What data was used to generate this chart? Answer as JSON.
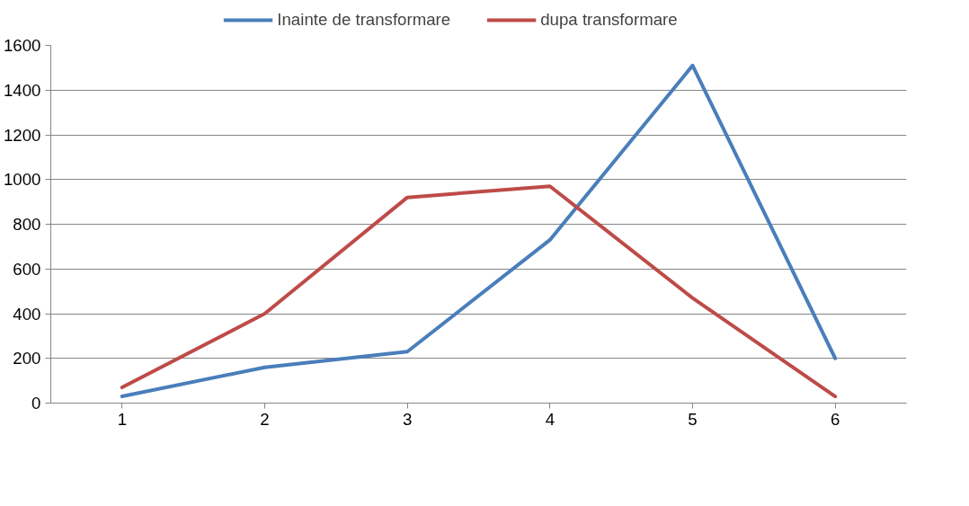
{
  "chart_data": {
    "type": "line",
    "categories": [
      "1",
      "2",
      "3",
      "4",
      "5",
      "6"
    ],
    "series": [
      {
        "name": "Inainte de transformare",
        "color": "#4a7ebb",
        "values": [
          30,
          160,
          230,
          730,
          1510,
          200
        ]
      },
      {
        "name": "dupa transformare",
        "color": "#be4b48",
        "values": [
          70,
          400,
          920,
          970,
          470,
          30
        ]
      }
    ],
    "ylim": [
      0,
      1600
    ],
    "yticks": [
      0,
      200,
      400,
      600,
      800,
      1000,
      1200,
      1400,
      1600
    ],
    "grid": "y",
    "legend": "top",
    "marker": "none",
    "line_style": "solid"
  }
}
